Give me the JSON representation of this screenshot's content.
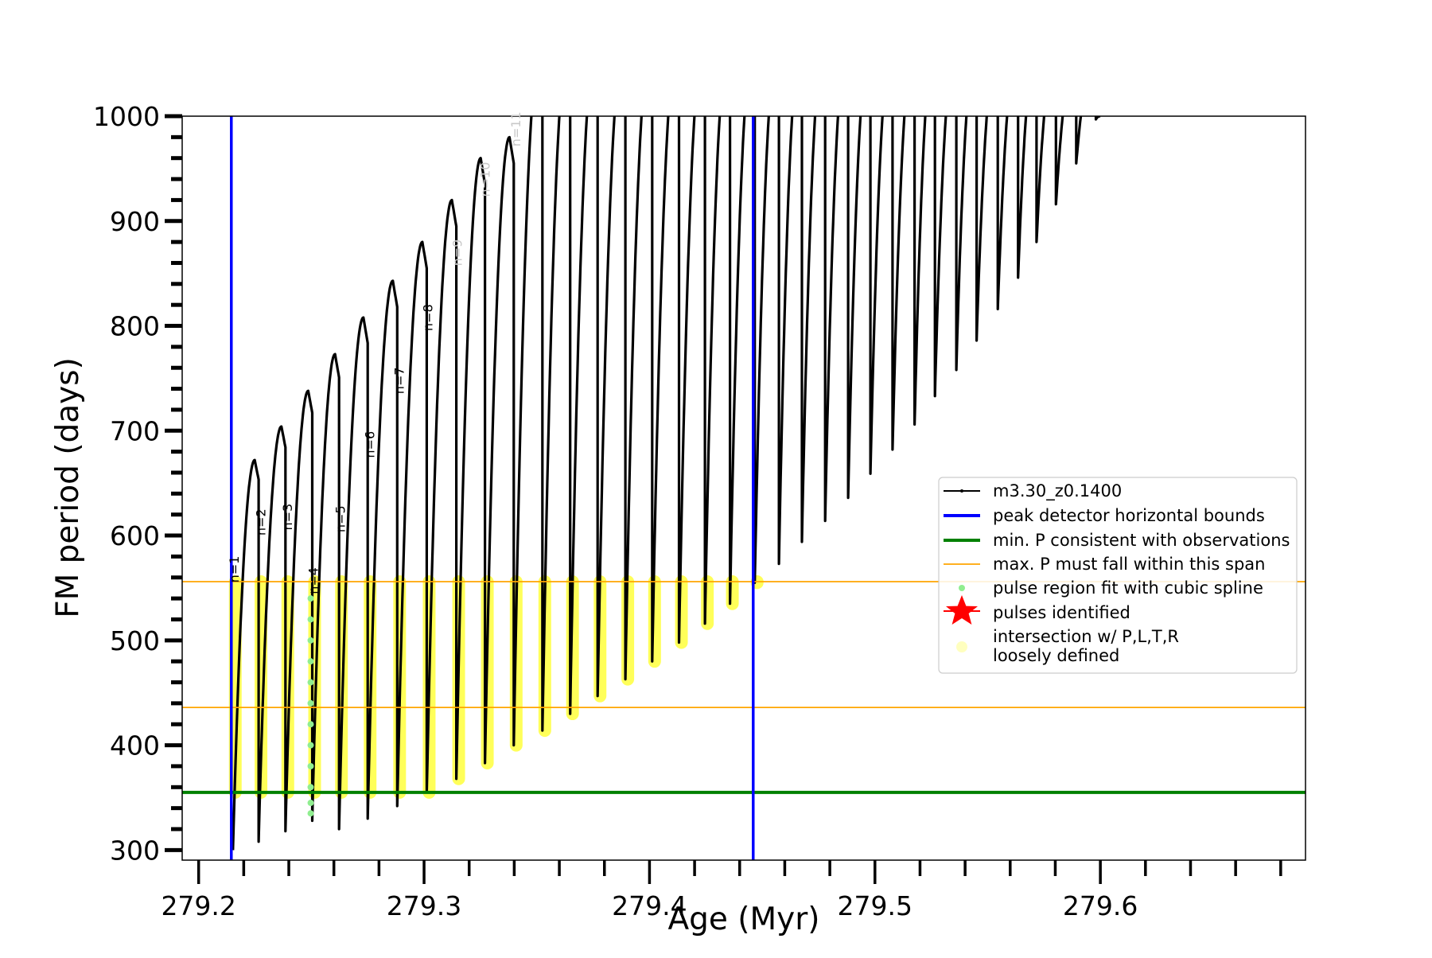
{
  "chart_data": {
    "type": "line",
    "title": "",
    "xlabel": "Age (Myr)",
    "ylabel": "FM period (days)",
    "xlim": [
      279.1927,
      279.691
    ],
    "ylim": [
      290.4,
      1000
    ],
    "xticks": [
      279.2,
      279.3,
      279.4,
      279.5,
      279.6
    ],
    "xtick_labels": [
      "279.2",
      "279.3",
      "279.4",
      "279.5",
      "279.6"
    ],
    "yticks": [
      300,
      400,
      500,
      600,
      700,
      800,
      900,
      1000
    ],
    "ytick_labels": [
      "300",
      "400",
      "500",
      "600",
      "700",
      "800",
      "900",
      "1000"
    ],
    "grid": false,
    "legend_position": "top-left",
    "series": [
      {
        "name": "m3.30_z0.1400",
        "color": "#000000",
        "pulse_ages": [
          279.2152,
          279.2266,
          279.2385,
          279.2504,
          279.2623,
          279.275,
          279.2881,
          279.3012,
          279.3143,
          279.327,
          279.3398,
          279.3525,
          279.3648,
          279.377,
          279.3893,
          279.4012,
          279.4131,
          279.4246,
          279.4357,
          279.4467,
          279.4574,
          279.4676,
          279.4779,
          279.4881,
          279.498,
          279.5078,
          279.5176,
          279.5266,
          279.5361,
          279.5451,
          279.5545,
          279.5635,
          279.5717,
          279.5803,
          279.5893,
          279.598
        ],
        "pulse_min_period": [
          300,
          308,
          318,
          328,
          320,
          330,
          342,
          355,
          368,
          383,
          400,
          414,
          430,
          447,
          463,
          480,
          498,
          516,
          535,
          555,
          573,
          594,
          614,
          636,
          659,
          682,
          706,
          733,
          758,
          786,
          816,
          846,
          880,
          916,
          955,
          997
        ],
        "cycle_peak_period": [
          672,
          704,
          738,
          773,
          808,
          843,
          880,
          920,
          960,
          980,
          1050,
          1050,
          1050,
          1050,
          1050,
          1050,
          1050,
          1050,
          1050,
          1050,
          1050,
          1050,
          1050,
          1050,
          1050,
          1050,
          1050,
          1050,
          1050,
          1050,
          1050,
          1050,
          1050,
          1050,
          1050,
          1000
        ]
      }
    ],
    "vlines": {
      "name": "peak detector horizontal bounds",
      "color": "#0000ff",
      "x": [
        279.2145,
        279.446
      ]
    },
    "hline_min": {
      "name": "min. P consistent with observations",
      "color": "#008000",
      "y": 355
    },
    "hlines_span": {
      "name": "max. P must fall within this span",
      "color": "#ffa500",
      "y": [
        436,
        556
      ]
    },
    "spline_points": {
      "name": "pulse region fit with cubic spline",
      "color": "#90ee90",
      "age": 279.2497,
      "periods": [
        335,
        345,
        360,
        380,
        400,
        420,
        440,
        460,
        480,
        500,
        520,
        540
      ]
    },
    "pulses_identified": {
      "name": "pulses identified",
      "color": "#ff0000"
    },
    "intersection": {
      "name": "intersection w/ P,L,T,R",
      "name2": "loosely defined",
      "color": "#ffff00",
      "upper": 556,
      "lower": 355,
      "max_age": 279.447
    },
    "annotations": [
      {
        "text": "n=1",
        "age": 279.2177,
        "period": 555,
        "faded": false
      },
      {
        "text": "n=2",
        "age": 279.2295,
        "period": 600,
        "faded": false
      },
      {
        "text": "n=3",
        "age": 279.2414,
        "period": 605,
        "faded": false
      },
      {
        "text": "n=4",
        "age": 279.2529,
        "period": 544,
        "faded": false
      },
      {
        "text": "n=5",
        "age": 279.2648,
        "period": 603,
        "faded": false
      },
      {
        "text": "n=6",
        "age": 279.2779,
        "period": 674,
        "faded": false
      },
      {
        "text": "n=7",
        "age": 279.291,
        "period": 735,
        "faded": false
      },
      {
        "text": "n=8",
        "age": 279.3037,
        "period": 795,
        "faded": false
      },
      {
        "text": "n=9",
        "age": 279.3168,
        "period": 857,
        "faded": true
      },
      {
        "text": "n=10",
        "age": 279.3291,
        "period": 923,
        "faded": true
      },
      {
        "text": "n=11",
        "age": 279.3426,
        "period": 971,
        "faded": true
      }
    ]
  }
}
